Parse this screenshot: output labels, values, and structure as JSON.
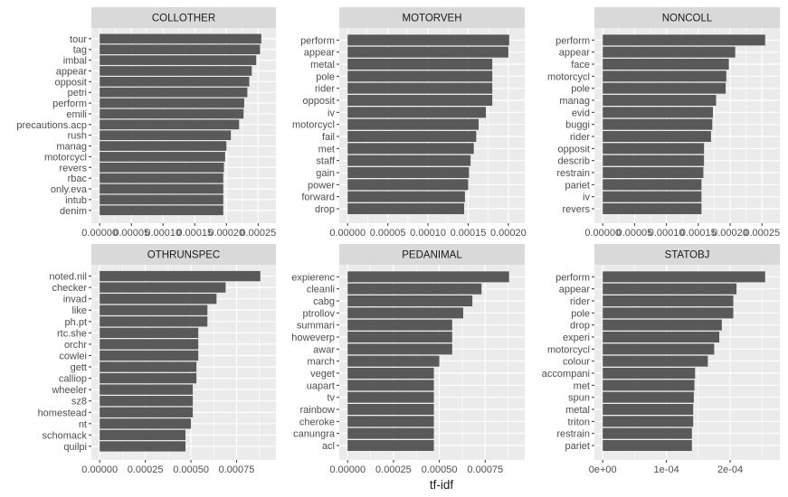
{
  "chart_data": {
    "type": "bar",
    "orientation": "horizontal",
    "xlabel": "tf-idf",
    "colors": {
      "bar": "#595959",
      "panel": "#ebebeb",
      "grid": "#ffffff",
      "strip": "#d9d9d9"
    },
    "panels": [
      {
        "title": "COLLOTHER",
        "categories": [
          "tour",
          "tag",
          "imbal",
          "appear",
          "opposit",
          "petri",
          "perform",
          "emili",
          "precautions.acp",
          "rush",
          "manag",
          "motorcycl",
          "revers",
          "rbac",
          "only.eva",
          "intub",
          "denim"
        ],
        "values": [
          0.000255,
          0.000253,
          0.000247,
          0.00024,
          0.000236,
          0.000233,
          0.000228,
          0.000227,
          0.00022,
          0.000207,
          0.0002,
          0.000198,
          0.000196,
          0.000195,
          0.000195,
          0.000195,
          0.000195
        ],
        "xlim": [
          0,
          0.000265
        ],
        "xticks": [
          0,
          5e-05,
          0.0001,
          0.00015,
          0.0002,
          0.00025
        ],
        "xtick_labels": [
          "0.00000",
          "0.00005",
          "0.00010",
          "0.00015",
          "0.00020",
          "0.00025"
        ]
      },
      {
        "title": "MOTORVEH",
        "categories": [
          "perform",
          "appear",
          "metal",
          "pole",
          "rider",
          "opposit",
          "iv",
          "motorcycl",
          "fail",
          "met",
          "staff",
          "gain",
          "power",
          "forward",
          "drop"
        ],
        "values": [
          0.000201,
          0.0002,
          0.00018,
          0.00018,
          0.00018,
          0.00018,
          0.000172,
          0.000163,
          0.00016,
          0.000157,
          0.000153,
          0.000151,
          0.00015,
          0.000146,
          0.000145
        ],
        "xlim": [
          0,
          0.00021
        ],
        "xticks": [
          0,
          5e-05,
          0.0001,
          0.00015,
          0.0002
        ],
        "xtick_labels": [
          "0.00000",
          "0.00005",
          "0.00010",
          "0.00015",
          "0.00020"
        ]
      },
      {
        "title": "NONCOLL",
        "categories": [
          "perform",
          "appear",
          "face",
          "motorcycl",
          "pole",
          "manag",
          "evid",
          "buggi",
          "rider",
          "opposit",
          "describ",
          "restrain",
          "pariet",
          "iv",
          "revers"
        ],
        "values": [
          0.000255,
          0.000208,
          0.000198,
          0.000194,
          0.000193,
          0.000178,
          0.000173,
          0.000172,
          0.00017,
          0.000159,
          0.000159,
          0.000158,
          0.000155,
          0.000155,
          0.000155
        ],
        "xlim": [
          0,
          0.000265
        ],
        "xticks": [
          0,
          5e-05,
          0.0001,
          0.00015,
          0.0002,
          0.00025
        ],
        "xtick_labels": [
          "0.00000",
          "0.00005",
          "0.00010",
          "0.00015",
          "0.00020",
          "0.00025"
        ]
      },
      {
        "title": "OTHRUNSPEC",
        "categories": [
          "noted.nil",
          "checker",
          "invad",
          "like",
          "ph.pt",
          "rtc.she",
          "orchr",
          "cowlei",
          "gett",
          "calliop",
          "wheeler",
          "sz8",
          "homestead",
          "nt",
          "schomack",
          "quilpi"
        ],
        "values": [
          0.00088,
          0.00069,
          0.00064,
          0.00059,
          0.00059,
          0.00054,
          0.00054,
          0.00054,
          0.00053,
          0.00053,
          0.00051,
          0.00051,
          0.00051,
          0.0005,
          0.00047,
          0.00047
        ],
        "xlim": [
          0,
          0.00092
        ],
        "xticks": [
          0,
          0.00025,
          0.0005,
          0.00075
        ],
        "xtick_labels": [
          "0.00000",
          "0.00025",
          "0.00050",
          "0.00075"
        ]
      },
      {
        "title": "PEDANIMAL",
        "categories": [
          "expierenc",
          "cleanli",
          "cabg",
          "ptrollov",
          "summari",
          "howeverp",
          "awar",
          "march",
          "veget",
          "uapart",
          "tv",
          "rainbow",
          "cheroke",
          "canungra",
          "acl"
        ],
        "values": [
          0.00088,
          0.00073,
          0.00068,
          0.00063,
          0.00057,
          0.00057,
          0.00057,
          0.0005,
          0.00047,
          0.00047,
          0.00047,
          0.00047,
          0.00047,
          0.00047,
          0.00047
        ],
        "xlim": [
          0,
          0.00092
        ],
        "xticks": [
          0,
          0.00025,
          0.0005,
          0.00075
        ],
        "xtick_labels": [
          "0.00000",
          "0.00025",
          "0.00050",
          "0.00075"
        ]
      },
      {
        "title": "STATOBJ",
        "categories": [
          "perform",
          "appear",
          "rider",
          "pole",
          "drop",
          "experi",
          "motorcycl",
          "colour",
          "accompani",
          "met",
          "spun",
          "metal",
          "triton",
          "restrain",
          "pariet"
        ],
        "values": [
          0.000255,
          0.00021,
          0.000205,
          0.000205,
          0.000187,
          0.000183,
          0.000175,
          0.000165,
          0.000145,
          0.000144,
          0.000143,
          0.000142,
          0.000142,
          0.00014,
          0.00014
        ],
        "xlim": [
          0,
          0.000265
        ],
        "xticks": [
          0,
          0.0001,
          0.0002
        ],
        "xtick_labels": [
          "0e+00",
          "1e-04",
          "2e-04"
        ]
      }
    ]
  }
}
